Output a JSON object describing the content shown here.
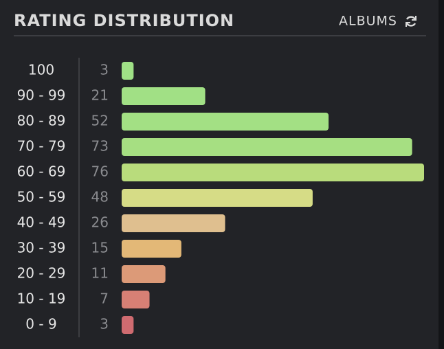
{
  "chart_data": {
    "type": "bar",
    "orientation": "horizontal",
    "title": "RATING DISTRIBUTION",
    "button": "ALBUMS",
    "categories": [
      "100",
      "90 - 99",
      "80 - 89",
      "70 - 79",
      "60 - 69",
      "50 - 59",
      "40 - 49",
      "30 - 39",
      "20 - 29",
      "10 - 19",
      "0 - 9"
    ],
    "values": [
      3,
      21,
      52,
      73,
      76,
      48,
      26,
      15,
      11,
      7,
      3
    ],
    "colors": [
      "#9fe086",
      "#a1e085",
      "#a3e084",
      "#a6df82",
      "#b9dc7c",
      "#d6dc86",
      "#dfbf8f",
      "#e3b877",
      "#dc9a78",
      "#d78075",
      "#cf6b70"
    ]
  }
}
